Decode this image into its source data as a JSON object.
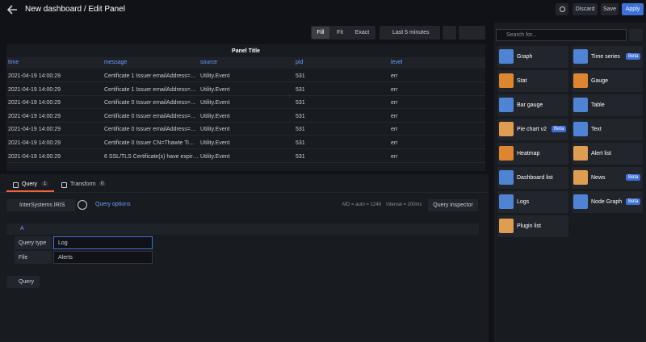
{
  "header": {
    "title": "New dashboard / Edit Panel",
    "buttons": [
      "Discard",
      "Save",
      "Apply"
    ]
  },
  "toolbar": {
    "view_modes": [
      "Fill",
      "Fit",
      "Exact"
    ],
    "time_range": "Last 5 minutes"
  },
  "panel": {
    "title": "Panel Title",
    "columns": [
      "time",
      "message",
      "source",
      "pid",
      "level"
    ],
    "rows": [
      [
        "2021-04-19 14:00:29",
        "Certificate 1 Issuer emailAddress=…",
        "Utility.Event",
        "531",
        "err"
      ],
      [
        "2021-04-19 14:00:29",
        "Certificate 1 Issuer emailAddress=…",
        "Utility.Event",
        "531",
        "err"
      ],
      [
        "2021-04-19 14:00:29",
        "Certificate 0 Issuer emailAddress=…",
        "Utility.Event",
        "531",
        "err"
      ],
      [
        "2021-04-19 14:00:29",
        "Certificate 0 Issuer emailAddress=…",
        "Utility.Event",
        "531",
        "err"
      ],
      [
        "2021-04-19 14:00:29",
        "Certificate 0 Issuer emailAddress=…",
        "Utility.Event",
        "531",
        "err"
      ],
      [
        "2021-04-19 14:00:29",
        "Certificate 0 Issuer CN=Thawte Ti…",
        "Utility.Event",
        "531",
        "err"
      ],
      [
        "2021-04-19 14:00:29",
        "6 SSL/TLS Certificate(s) have expir…",
        "Utility.Event",
        "531",
        "err"
      ]
    ]
  },
  "tabs": [
    {
      "label": "Query",
      "count": "1"
    },
    {
      "label": "Transform",
      "count": "0"
    }
  ],
  "query_bar": {
    "datasource": "InterSystems IRIS",
    "options": "Query options",
    "max_data_points": "MD = auto = 1246",
    "interval": "Interval = 200ms",
    "inspector": "Query inspector"
  },
  "query": {
    "ref_id": "A",
    "fields": [
      {
        "label": "Query type",
        "value": "Log"
      },
      {
        "label": "File",
        "value": "Alerts"
      }
    ],
    "add_button": "Query"
  },
  "visualizations": {
    "search_placeholder": "Search for...",
    "items": [
      {
        "name": "Graph"
      },
      {
        "name": "Time series",
        "badge": "Beta"
      },
      {
        "name": "Stat"
      },
      {
        "name": "Gauge"
      },
      {
        "name": "Bar gauge"
      },
      {
        "name": "Table"
      },
      {
        "name": "Pie chart v2",
        "badge": "Beta"
      },
      {
        "name": "Text"
      },
      {
        "name": "Heatmap"
      },
      {
        "name": "Alert list"
      },
      {
        "name": "Dashboard list"
      },
      {
        "name": "News",
        "badge": "Beta"
      },
      {
        "name": "Logs"
      },
      {
        "name": "Node Graph",
        "badge": "Beta"
      },
      {
        "name": "Plugin list"
      }
    ]
  }
}
